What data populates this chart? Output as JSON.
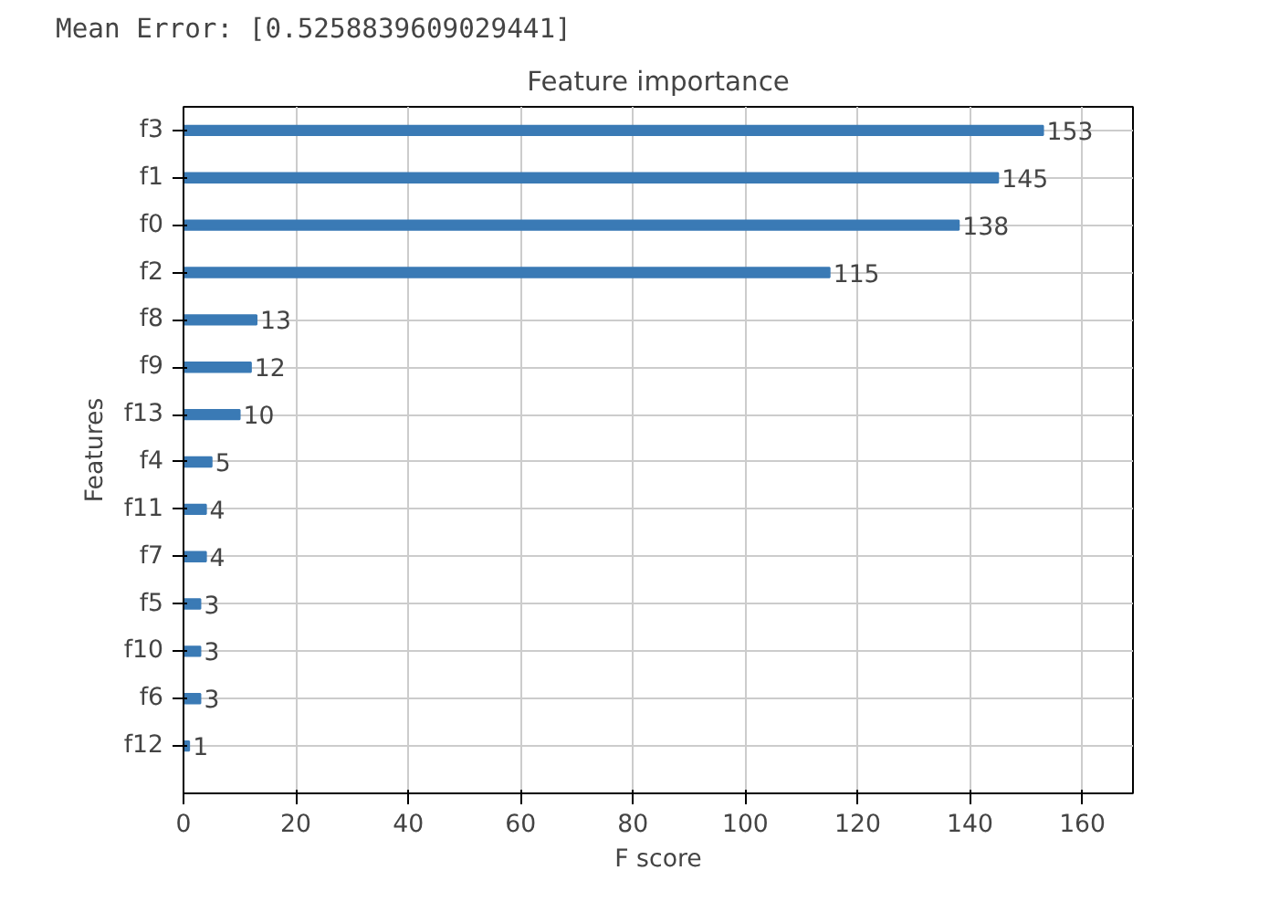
{
  "chart_data": {
    "type": "bar",
    "orientation": "horizontal",
    "title": "Feature importance",
    "xlabel": "F score",
    "ylabel": "Features",
    "annotations": [
      "Mean Error: [0.5258839609029441]"
    ],
    "categories": [
      "f3",
      "f1",
      "f0",
      "f2",
      "f8",
      "f9",
      "f13",
      "f4",
      "f11",
      "f7",
      "f5",
      "f10",
      "f6",
      "f12"
    ],
    "values": [
      153,
      145,
      138,
      115,
      13,
      12,
      10,
      5,
      4,
      4,
      3,
      3,
      3,
      1
    ],
    "color": "#3a7ab5",
    "xlim": [
      0,
      169
    ],
    "xticks": [
      0,
      20,
      40,
      60,
      80,
      100,
      120,
      140,
      160
    ],
    "data_labels": true,
    "grid": true
  }
}
